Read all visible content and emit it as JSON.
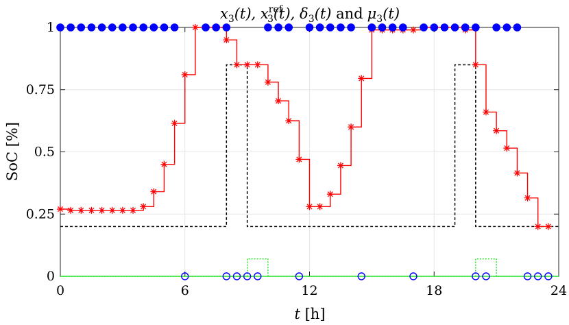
{
  "chart_data": {
    "type": "line",
    "title": "x_3(t), x_3^ref(t), δ_3(t) and μ_3(t)",
    "title_parts": {
      "x": "x",
      "sub": "3",
      "t": "(t), ",
      "ref": "ref",
      "delta": "δ",
      "and": "and",
      "mu": "μ"
    },
    "xlabel": "t [h]",
    "xlabel_parts": {
      "var": "t",
      "unit": " [h]"
    },
    "ylabel": "SoC [%]",
    "xlim": [
      0,
      24
    ],
    "ylim": [
      0,
      1
    ],
    "xticks": [
      0,
      6,
      12,
      18,
      24
    ],
    "xtick_labels": [
      "0",
      "6",
      "12",
      "18",
      "24"
    ],
    "yticks": [
      0,
      0.25,
      0.5,
      0.75,
      1
    ],
    "ytick_labels": [
      "0",
      "0.25",
      "0.5",
      "0.75",
      "1"
    ],
    "grid": true,
    "series": [
      {
        "id": "x",
        "style": "step-red-star",
        "color": "#ff0000",
        "x": [
          0,
          0.5,
          1,
          1.5,
          2,
          2.5,
          3,
          3.5,
          4,
          4.5,
          5,
          5.5,
          6,
          6.5,
          7,
          7.5,
          8,
          8.5,
          9,
          9.5,
          10,
          10.5,
          11,
          11.5,
          12,
          12.5,
          13,
          13.5,
          14,
          14.5,
          15,
          15.5,
          16,
          16.5,
          17,
          17.5,
          18,
          18.5,
          19,
          19.5,
          20,
          20.5,
          21,
          21.5,
          22,
          22.5,
          23,
          23.5
        ],
        "values": [
          0.27,
          0.265,
          0.265,
          0.265,
          0.265,
          0.265,
          0.265,
          0.265,
          0.28,
          0.34,
          0.45,
          0.615,
          0.81,
          1.0,
          1.0,
          1.0,
          0.95,
          0.85,
          0.85,
          0.85,
          0.78,
          0.705,
          0.625,
          0.47,
          0.28,
          0.28,
          0.33,
          0.445,
          0.6,
          0.795,
          0.99,
          0.99,
          0.99,
          0.99,
          0.99,
          1.0,
          1.0,
          1.0,
          1.0,
          0.99,
          0.85,
          0.66,
          0.585,
          0.515,
          0.415,
          0.315,
          0.2,
          0.2
        ]
      },
      {
        "id": "x_ref",
        "style": "step-black-dashed",
        "color": "#000000",
        "x": [
          0,
          8.0,
          8.0,
          9.0,
          9.0,
          19.0,
          19.0,
          20.0,
          20.0,
          24.0
        ],
        "values": [
          0.2,
          0.2,
          0.85,
          0.85,
          0.2,
          0.2,
          0.85,
          0.85,
          0.2,
          0.2
        ]
      },
      {
        "id": "delta",
        "style": "markers-blue-filled",
        "color": "#0000ff",
        "x": [
          0,
          0.5,
          1,
          1.5,
          2,
          2.5,
          3,
          3.5,
          4,
          4.5,
          5,
          5.5,
          7,
          7.5,
          8,
          10,
          10.5,
          11,
          12,
          12.5,
          13,
          13.5,
          14,
          15,
          15.5,
          16,
          16.5,
          17.5,
          18,
          18.5,
          19,
          19.5,
          20,
          21,
          21.5,
          22
        ],
        "values": [
          1,
          1,
          1,
          1,
          1,
          1,
          1,
          1,
          1,
          1,
          1,
          1,
          1,
          1,
          1,
          1,
          1,
          1,
          1,
          1,
          1,
          1,
          1,
          1,
          1,
          1,
          1,
          1,
          1,
          1,
          1,
          1,
          1,
          1,
          1,
          1
        ]
      },
      {
        "id": "delta_zero",
        "style": "markers-blue-open",
        "color": "#0000ff",
        "x": [
          6,
          8,
          8.5,
          9,
          9.5,
          11.5,
          14.5,
          17,
          20,
          20.5,
          22.5,
          23,
          23.5
        ],
        "values": [
          0,
          0,
          0,
          0,
          0,
          0,
          0,
          0,
          0,
          0,
          0,
          0,
          0
        ]
      },
      {
        "id": "mu",
        "style": "step-green-dotted",
        "color": "#00dd00",
        "x": [
          0,
          9.0,
          9.0,
          10.0,
          10.0,
          20.0,
          20.0,
          21.0,
          21.0,
          24.0
        ],
        "values": [
          0,
          0,
          0.07,
          0.07,
          0,
          0,
          0.07,
          0.07,
          0,
          0
        ]
      }
    ]
  }
}
